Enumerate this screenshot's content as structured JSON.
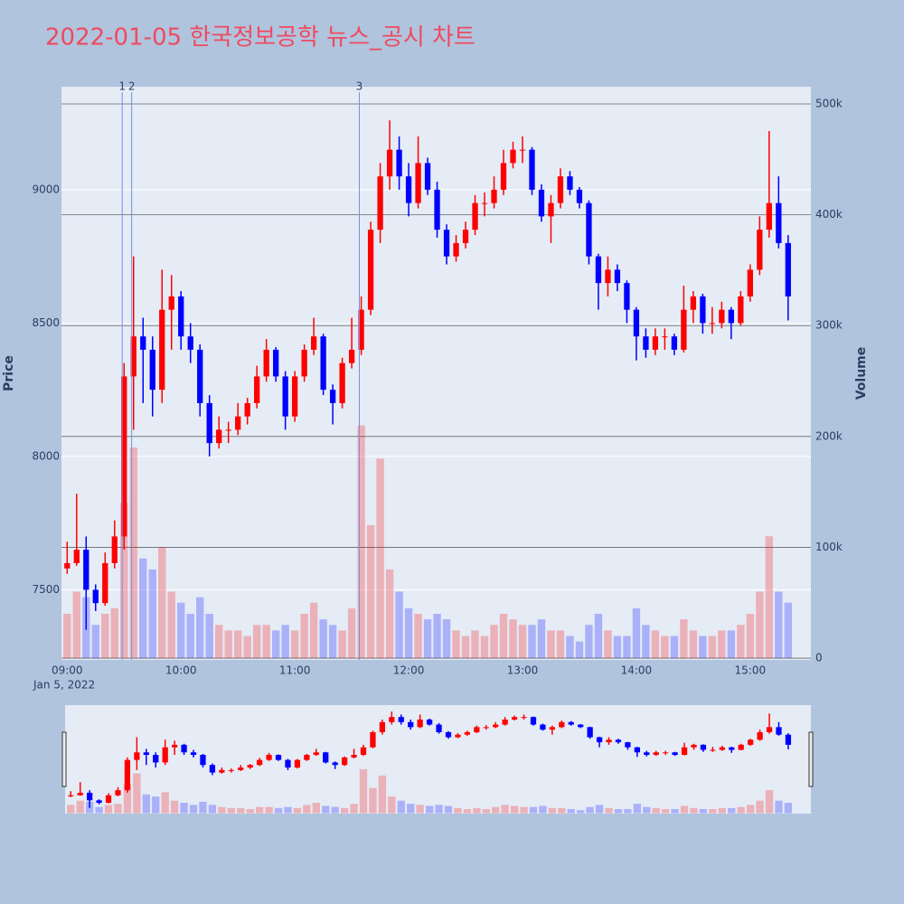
{
  "chart_data": {
    "type": "candlestick",
    "title": "2022-01-05 한국정보공학 뉴스_공시 차트",
    "y_label": "Price",
    "y2_label": "Volume",
    "x_date_label": "Jan 5, 2022",
    "x": [
      "09:00",
      "09:05",
      "09:10",
      "09:15",
      "09:20",
      "09:25",
      "09:30",
      "09:35",
      "09:40",
      "09:45",
      "09:50",
      "09:55",
      "10:00",
      "10:05",
      "10:10",
      "10:15",
      "10:20",
      "10:25",
      "10:30",
      "10:35",
      "10:40",
      "10:45",
      "10:50",
      "10:55",
      "11:00",
      "11:05",
      "11:10",
      "11:15",
      "11:20",
      "11:25",
      "11:30",
      "11:35",
      "11:40",
      "11:45",
      "11:50",
      "11:55",
      "12:00",
      "12:05",
      "12:10",
      "12:15",
      "12:20",
      "12:25",
      "12:30",
      "12:35",
      "12:40",
      "12:45",
      "12:50",
      "12:55",
      "13:00",
      "13:05",
      "13:10",
      "13:15",
      "13:20",
      "13:25",
      "13:30",
      "13:35",
      "13:40",
      "13:45",
      "13:50",
      "13:55",
      "14:00",
      "14:05",
      "14:10",
      "14:15",
      "14:20",
      "14:25",
      "14:30",
      "14:35",
      "14:40",
      "14:45",
      "14:50",
      "14:55",
      "15:00",
      "15:05",
      "15:10",
      "15:15",
      "15:20"
    ],
    "open": [
      7580,
      7600,
      7650,
      7500,
      7450,
      7600,
      7700,
      8300,
      8450,
      8400,
      8250,
      8550,
      8600,
      8450,
      8400,
      8200,
      8050,
      8100,
      8100,
      8150,
      8200,
      8300,
      8400,
      8300,
      8150,
      8300,
      8400,
      8450,
      8250,
      8200,
      8350,
      8400,
      8550,
      8850,
      9050,
      9150,
      9050,
      8950,
      9100,
      9000,
      8850,
      8750,
      8800,
      8850,
      8950,
      8950,
      9000,
      9100,
      9150,
      9150,
      9000,
      8900,
      8950,
      9050,
      9000,
      8950,
      8750,
      8650,
      8700,
      8650,
      8550,
      8450,
      8400,
      8450,
      8450,
      8400,
      8550,
      8600,
      8500,
      8500,
      8550,
      8500,
      8600,
      8700,
      8850,
      8950,
      8800
    ],
    "high": [
      7680,
      7860,
      7700,
      7520,
      7640,
      7760,
      8350,
      8750,
      8520,
      8450,
      8700,
      8680,
      8620,
      8500,
      8420,
      8230,
      8150,
      8130,
      8200,
      8220,
      8340,
      8440,
      8410,
      8320,
      8320,
      8420,
      8520,
      8460,
      8270,
      8370,
      8520,
      8600,
      8880,
      9100,
      9260,
      9200,
      9100,
      9200,
      9120,
      9030,
      8870,
      8830,
      8880,
      8980,
      8990,
      9050,
      9150,
      9180,
      9200,
      9160,
      9020,
      8980,
      9080,
      9070,
      9010,
      8960,
      8760,
      8750,
      8720,
      8660,
      8560,
      8480,
      8480,
      8480,
      8460,
      8640,
      8620,
      8610,
      8560,
      8580,
      8560,
      8620,
      8720,
      8900,
      9220,
      9050,
      8830
    ],
    "low": [
      7560,
      7590,
      7350,
      7420,
      7440,
      7580,
      7650,
      8100,
      8200,
      8150,
      8200,
      8400,
      8400,
      8350,
      8150,
      8000,
      8030,
      8050,
      8080,
      8120,
      8180,
      8280,
      8280,
      8100,
      8130,
      8280,
      8380,
      8230,
      8120,
      8180,
      8330,
      8380,
      8530,
      8800,
      9000,
      9000,
      8900,
      8930,
      8980,
      8820,
      8720,
      8730,
      8780,
      8830,
      8900,
      8930,
      8980,
      9080,
      9100,
      8980,
      8880,
      8800,
      8930,
      8980,
      8930,
      8720,
      8550,
      8600,
      8620,
      8500,
      8360,
      8370,
      8380,
      8400,
      8380,
      8390,
      8500,
      8460,
      8460,
      8480,
      8440,
      8490,
      8580,
      8680,
      8820,
      8780,
      8510
    ],
    "close": [
      7600,
      7650,
      7500,
      7450,
      7600,
      7700,
      8300,
      8450,
      8400,
      8250,
      8550,
      8600,
      8450,
      8400,
      8200,
      8050,
      8100,
      8100,
      8150,
      8200,
      8300,
      8400,
      8300,
      8150,
      8300,
      8400,
      8450,
      8250,
      8200,
      8350,
      8400,
      8550,
      8850,
      9050,
      9150,
      9050,
      8950,
      9100,
      9000,
      8850,
      8750,
      8800,
      8850,
      8950,
      8950,
      9000,
      9100,
      9150,
      9150,
      9000,
      8900,
      8950,
      9050,
      9000,
      8950,
      8750,
      8650,
      8700,
      8650,
      8550,
      8450,
      8400,
      8450,
      8450,
      8400,
      8550,
      8600,
      8500,
      8500,
      8550,
      8500,
      8600,
      8700,
      8850,
      8950,
      8800,
      8600
    ],
    "volume": [
      40000,
      60000,
      55000,
      30000,
      40000,
      45000,
      140000,
      190000,
      90000,
      80000,
      100000,
      60000,
      50000,
      40000,
      55000,
      40000,
      30000,
      25000,
      25000,
      20000,
      30000,
      30000,
      25000,
      30000,
      25000,
      40000,
      50000,
      35000,
      30000,
      25000,
      45000,
      210000,
      120000,
      180000,
      80000,
      60000,
      45000,
      40000,
      35000,
      40000,
      35000,
      25000,
      20000,
      25000,
      20000,
      30000,
      40000,
      35000,
      30000,
      30000,
      35000,
      25000,
      25000,
      20000,
      15000,
      30000,
      40000,
      25000,
      20000,
      20000,
      45000,
      30000,
      25000,
      20000,
      20000,
      35000,
      25000,
      20000,
      20000,
      25000,
      25000,
      30000,
      40000,
      60000,
      110000,
      60000,
      50000
    ],
    "increasing_color": "#ff0000",
    "decreasing_color": "#0000ff",
    "xlim": [
      "08:57",
      "15:32"
    ],
    "xticks": [
      "09:00",
      "10:00",
      "11:00",
      "12:00",
      "13:00",
      "14:00",
      "15:00"
    ],
    "ylim": [
      7237,
      9386
    ],
    "yticks": [
      7500,
      8000,
      8500,
      9000
    ],
    "y2lim": [
      -1600,
      515500
    ],
    "y2ticks": [
      0,
      {
        "value": 100000,
        "label": "100k"
      },
      {
        "value": 200000,
        "label": "200k"
      },
      {
        "value": 300000,
        "label": "300k"
      },
      {
        "value": 400000,
        "label": "400k"
      },
      {
        "value": 500000,
        "label": "500k"
      }
    ],
    "annotations": [
      {
        "x": "09:29",
        "text": "1"
      },
      {
        "x": "09:34",
        "text": "2"
      },
      {
        "x": "11:34",
        "text": "3"
      }
    ],
    "grid": true,
    "range_slider": true
  }
}
